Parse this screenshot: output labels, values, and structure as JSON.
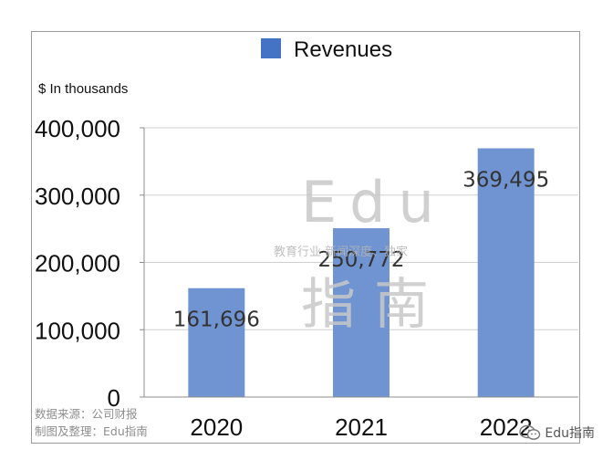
{
  "chart_data": {
    "type": "bar",
    "title": "",
    "legend": {
      "label": "Revenues",
      "color": "#4472c4",
      "position": "top"
    },
    "ylabel": "$ In thousands",
    "xlabel": "",
    "categories": [
      "2020",
      "2021",
      "2022"
    ],
    "values": [
      161696,
      250772,
      369495
    ],
    "value_labels": [
      "161,696",
      "250,772",
      "369,495"
    ],
    "ylim": [
      0,
      400000
    ],
    "yticks": [
      0,
      100000,
      200000,
      300000,
      400000
    ],
    "ytick_labels": [
      "0",
      "100,000",
      "200,000",
      "300,000",
      "400,000"
    ],
    "bar_color": "#7094d1",
    "grid": true
  },
  "watermark": {
    "line1": "Edu",
    "line2": "教育行业 新闻深度、独家",
    "line3": "指南"
  },
  "source": {
    "line1": "数据来源：公司财报",
    "line2": "制图及整理：Edu指南"
  },
  "badge": {
    "text": "Edu指南",
    "icon": "wechat-icon"
  }
}
